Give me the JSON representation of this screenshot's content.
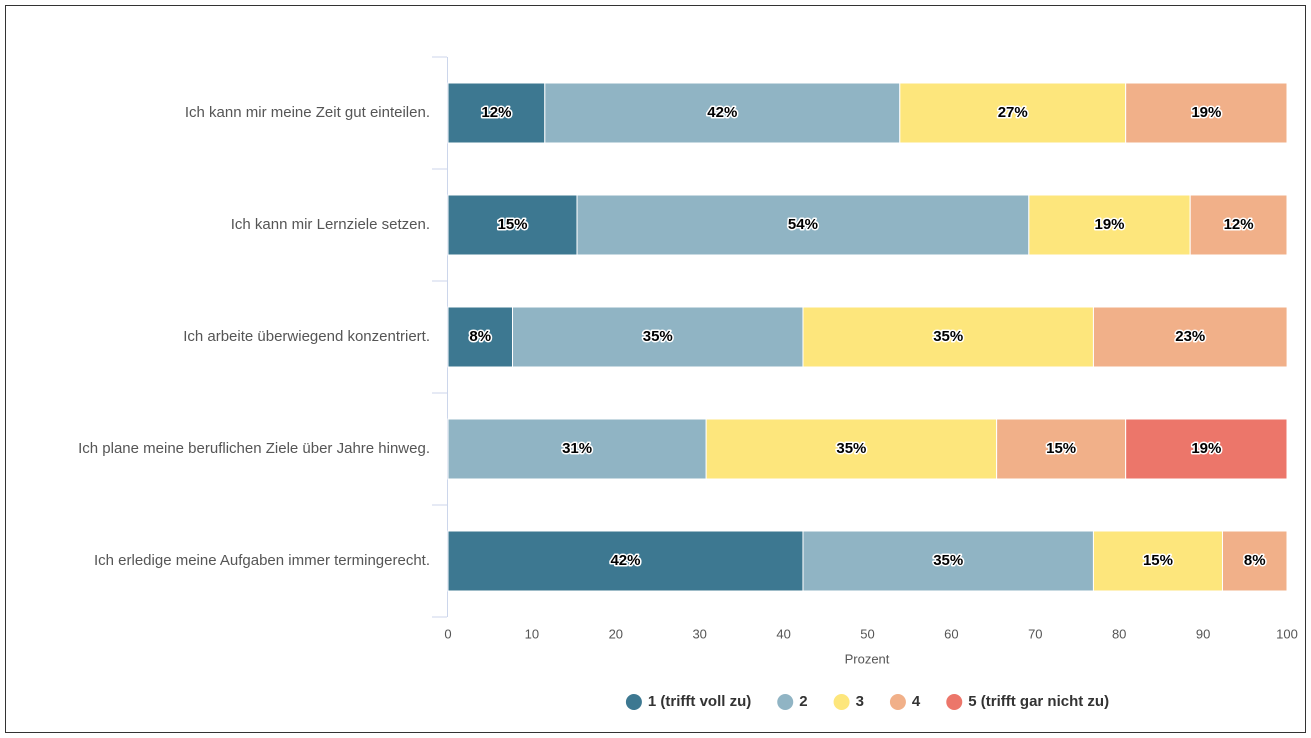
{
  "chart_data": {
    "type": "stacked-barh",
    "categories": [
      "Ich kann mir meine Zeit gut einteilen.",
      "Ich kann mir Lernziele setzen.",
      "Ich arbeite überwiegend konzentriert.",
      "Ich plane meine beruflichen Ziele über Jahre hinweg.",
      "Ich erledige meine Aufgaben immer termingerecht."
    ],
    "series": [
      {
        "name": "1 (trifft voll zu)",
        "color": "#3d7891",
        "values": [
          11.54,
          15.38,
          7.69,
          0,
          42.31
        ],
        "value_labels": [
          "12%",
          "15%",
          "8%",
          null,
          "42%"
        ]
      },
      {
        "name": "2",
        "color": "#90b4c4",
        "values": [
          42.31,
          53.85,
          34.62,
          30.77,
          34.62
        ],
        "value_labels": [
          "42%",
          "54%",
          "35%",
          "31%",
          "35%"
        ]
      },
      {
        "name": "3",
        "color": "#fde67c",
        "values": [
          26.92,
          19.23,
          34.62,
          34.62,
          15.38
        ],
        "value_labels": [
          "27%",
          "19%",
          "35%",
          "35%",
          "15%"
        ]
      },
      {
        "name": "4",
        "color": "#f1b089",
        "values": [
          19.23,
          11.54,
          23.08,
          15.38,
          7.69
        ],
        "value_labels": [
          "19%",
          "12%",
          "23%",
          "15%",
          "8%"
        ]
      },
      {
        "name": "5 (trifft gar nicht zu)",
        "color": "#ec766a",
        "values": [
          0,
          0,
          0,
          19.23,
          0
        ],
        "value_labels": [
          null,
          null,
          null,
          "19%",
          null
        ]
      }
    ],
    "xlabel": "Prozent",
    "xlim": [
      0,
      100
    ],
    "xticks": [
      0,
      10,
      20,
      30,
      40,
      50,
      60,
      70,
      80,
      90,
      100
    ],
    "legend": "bottom"
  }
}
